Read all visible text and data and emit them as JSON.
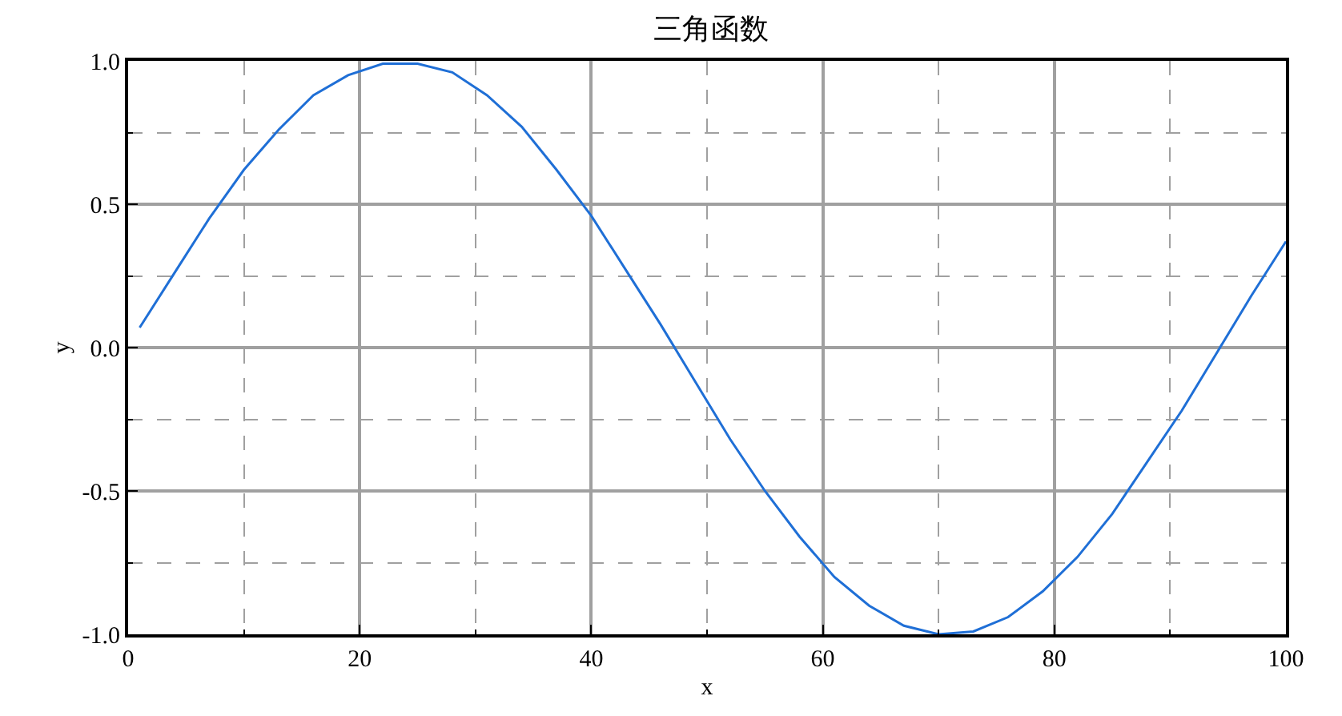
{
  "chart_data": {
    "type": "line",
    "title": "三角函数",
    "xlabel": "x",
    "ylabel": "y",
    "x": [
      1,
      4,
      7,
      10,
      13,
      16,
      19,
      22,
      25,
      28,
      31,
      34,
      37,
      40,
      43,
      46,
      49,
      52,
      55,
      58,
      61,
      64,
      67,
      70,
      73,
      76,
      79,
      82,
      85,
      88,
      91,
      94,
      97,
      100
    ],
    "series": [
      {
        "color": "#1f6fd6",
        "values": [
          0.07,
          0.26,
          0.45,
          0.62,
          0.76,
          0.88,
          0.95,
          0.99,
          0.99,
          0.96,
          0.88,
          0.77,
          0.62,
          0.46,
          0.27,
          0.08,
          -0.12,
          -0.32,
          -0.5,
          -0.66,
          -0.8,
          -0.9,
          -0.97,
          -1.0,
          -0.99,
          -0.94,
          -0.85,
          -0.73,
          -0.58,
          -0.4,
          -0.22,
          -0.02,
          0.18,
          0.37
        ]
      }
    ],
    "xlim": [
      0,
      100
    ],
    "xticks": [
      0,
      {
        "value": 10,
        "label": null
      },
      20,
      {
        "value": 30,
        "label": null
      },
      40,
      {
        "value": 50,
        "label": null
      },
      60,
      {
        "value": 70,
        "label": null
      },
      80,
      {
        "value": 90,
        "label": null
      },
      100
    ],
    "ylim": [
      -1,
      1
    ],
    "yticks": [
      {
        "value": -1,
        "label": "-1.0"
      },
      {
        "value": -0.75,
        "label": null
      },
      {
        "value": -0.5,
        "label": "-0.5"
      },
      {
        "value": -0.25,
        "label": null
      },
      {
        "value": 0,
        "label": "0.0"
      },
      {
        "value": 0.25,
        "label": null
      },
      {
        "value": 0.5,
        "label": "0.5"
      },
      {
        "value": 0.75,
        "label": null
      },
      {
        "value": 1,
        "label": "1.0"
      }
    ],
    "grid": true,
    "legend": false,
    "marker": "none",
    "line_style": "solid"
  }
}
